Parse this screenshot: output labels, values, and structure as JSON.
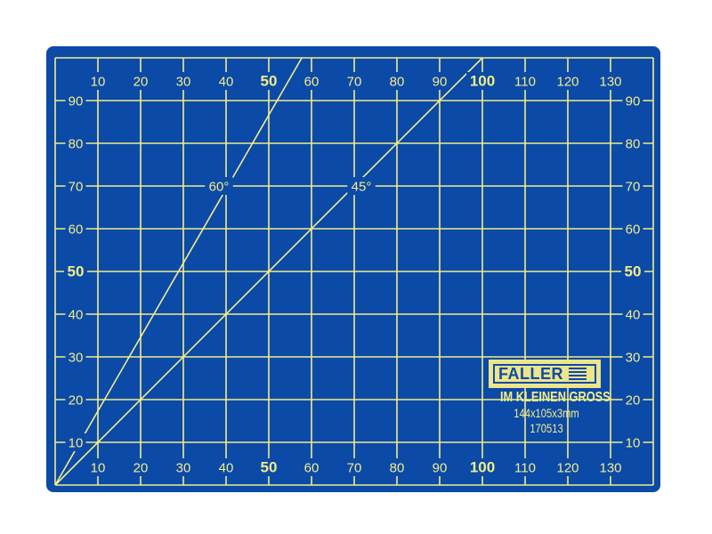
{
  "mat": {
    "background_color": "#0b4aa6",
    "line_color": "#f3ec8a",
    "width_units": 140,
    "height_units": 100,
    "grid_step": 10,
    "x_labels": [
      "10",
      "20",
      "30",
      "40",
      "50",
      "60",
      "70",
      "80",
      "90",
      "100",
      "110",
      "120",
      "130"
    ],
    "y_labels": [
      "10",
      "20",
      "30",
      "40",
      "50",
      "60",
      "70",
      "80",
      "90"
    ],
    "bold_labels": [
      "50",
      "100"
    ],
    "angle_lines": [
      {
        "label": "60°",
        "angle_deg": 60
      },
      {
        "label": "45°",
        "angle_deg": 45
      }
    ]
  },
  "logo": {
    "brand": "FALLER",
    "slogan": "IM KLEINEN GROSS",
    "dimensions": "144x105x3mm",
    "article_number": "170513"
  }
}
